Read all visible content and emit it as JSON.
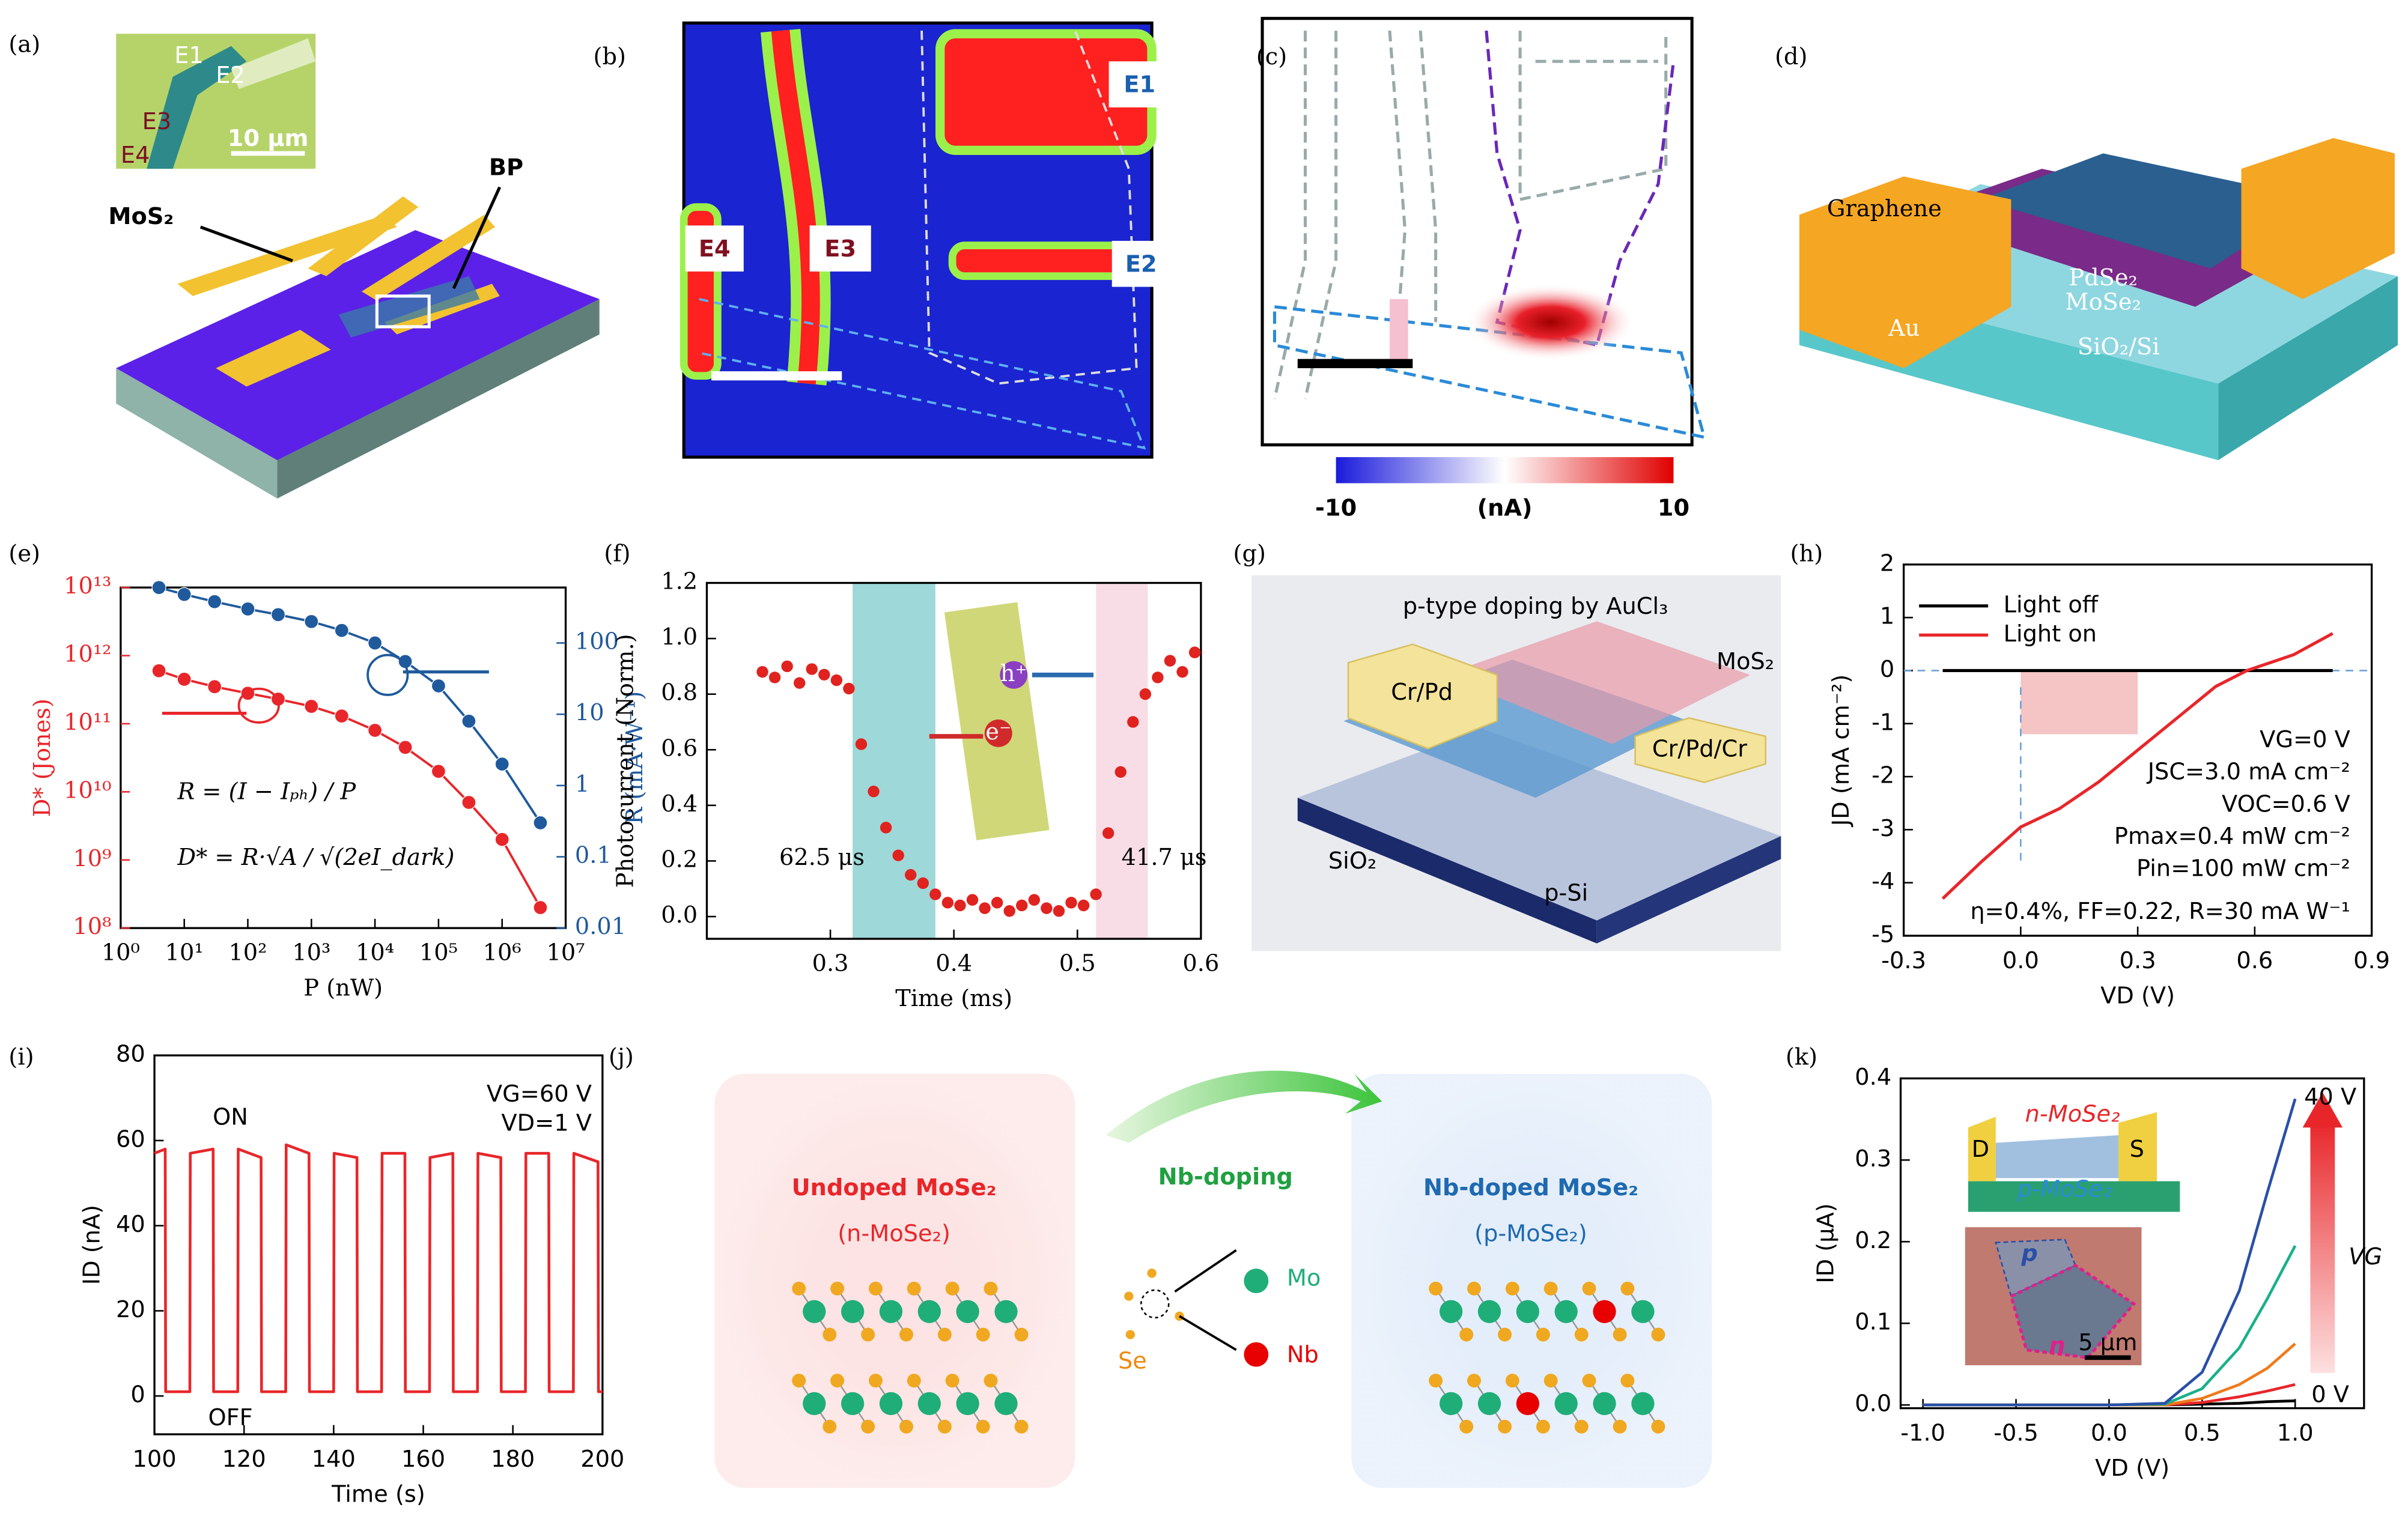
{
  "panel_labels": [
    "(a)",
    "(b)",
    "(c)",
    "(d)",
    "(e)",
    "(f)",
    "(g)",
    "(h)",
    "(i)",
    "(j)",
    "(k)"
  ],
  "a": {
    "electrodes": [
      "E1",
      "E2",
      "E3",
      "E4"
    ],
    "scale_bar": "10 μm",
    "materials": [
      "MoS₂",
      "BP"
    ]
  },
  "b": {
    "electrodes": [
      "E1",
      "E2",
      "E3",
      "E4"
    ]
  },
  "c": {
    "colorbar": {
      "min": -10,
      "max": 10,
      "unit": "(nA)"
    }
  },
  "d": {
    "layers": [
      "Graphene",
      "Au",
      "PdSe₂",
      "MoSe₂",
      "SiO₂/Si"
    ]
  },
  "e": {
    "type": "scatter",
    "xlabel": "P (nW)",
    "ylabel": "D* (Jones)",
    "y2label": "R (mA·W⁻¹)",
    "xlog": true,
    "ylog": true,
    "y2log": true,
    "xlim": [
      1,
      10000000.0
    ],
    "ylim": [
      100000000.0,
      10000000000000.0
    ],
    "y2lim": [
      0.01,
      600
    ],
    "xticks": [
      {
        "value": 1,
        "label": "10⁰"
      },
      {
        "value": 10,
        "label": "10¹"
      },
      {
        "value": 100,
        "label": "10²"
      },
      {
        "value": 1000,
        "label": "10³"
      },
      {
        "value": 10000,
        "label": "10⁴"
      },
      {
        "value": 100000,
        "label": "10⁵"
      },
      {
        "value": 1000000,
        "label": "10⁶"
      },
      {
        "value": 10000000,
        "label": "10⁷"
      }
    ],
    "yticks": [
      {
        "value": 100000000.0,
        "label": "10⁸"
      },
      {
        "value": 1000000000.0,
        "label": "10⁹"
      },
      {
        "value": 10000000000.0,
        "label": "10¹⁰"
      },
      {
        "value": 100000000000.0,
        "label": "10¹¹"
      },
      {
        "value": 1000000000000.0,
        "label": "10¹²"
      },
      {
        "value": 10000000000000.0,
        "label": "10¹³"
      }
    ],
    "y2ticks": [
      0.01,
      0.1,
      1,
      10,
      100
    ],
    "x": [
      4,
      10,
      30,
      100,
      300,
      1000,
      3000,
      10000,
      30000,
      100000,
      300000,
      1000000,
      4000000
    ],
    "series": [
      {
        "color": "#e8262a",
        "values": [
          600000000000.0,
          450000000000.0,
          350000000000.0,
          280000000000.0,
          230000000000.0,
          180000000000.0,
          130000000000.0,
          80000000000.0,
          45000000000.0,
          20000000000.0,
          7000000000.0,
          2000000000.0,
          200000000.0
        ]
      },
      {
        "color": "#1f5a9c",
        "axis": "y2",
        "values": [
          600,
          480,
          380,
          300,
          250,
          200,
          150,
          100,
          55,
          25,
          8,
          2,
          0.3
        ]
      }
    ],
    "formulas": [
      "R = (I − Iₚₕ) / P",
      "D* = R·√A / √(2eI_dark)"
    ]
  },
  "f": {
    "type": "scatter",
    "xlabel": "Time (ms)",
    "ylabel": "Photocurrent (Norm.)",
    "xlim": [
      0.2,
      0.6
    ],
    "ylim": [
      -0.08,
      1.2
    ],
    "xticks": [
      0.3,
      0.4,
      0.5,
      0.6
    ],
    "yticks": [
      {
        "value": 0,
        "label": "0.0"
      },
      0.2,
      0.4,
      0.6,
      0.8,
      {
        "value": 1,
        "label": "1.0"
      },
      1.2
    ],
    "spans": [
      [
        0.318,
        0.385
      ],
      [
        0.515,
        0.557
      ]
    ],
    "span_colors": [
      "#9ed8d8",
      "#f9dde6"
    ],
    "color": "#e0231f",
    "annotations": [
      "62.5 μs",
      "41.7 μs"
    ],
    "inset_labels": [
      "h⁺",
      "e⁻"
    ],
    "x": [
      0.245,
      0.255,
      0.265,
      0.275,
      0.285,
      0.295,
      0.305,
      0.315,
      0.325,
      0.335,
      0.345,
      0.355,
      0.365,
      0.375,
      0.385,
      0.395,
      0.405,
      0.415,
      0.425,
      0.435,
      0.445,
      0.455,
      0.465,
      0.475,
      0.485,
      0.495,
      0.505,
      0.515,
      0.525,
      0.535,
      0.545,
      0.555,
      0.565,
      0.575,
      0.585,
      0.595
    ],
    "values": [
      0.88,
      0.86,
      0.9,
      0.84,
      0.89,
      0.87,
      0.85,
      0.82,
      0.62,
      0.45,
      0.32,
      0.22,
      0.15,
      0.12,
      0.08,
      0.05,
      0.04,
      0.06,
      0.03,
      0.05,
      0.02,
      0.04,
      0.06,
      0.03,
      0.02,
      0.05,
      0.04,
      0.08,
      0.3,
      0.52,
      0.7,
      0.8,
      0.86,
      0.92,
      0.88,
      0.95
    ]
  },
  "g": {
    "labels": [
      "p-type doping by AuCl₃",
      "MoS₂",
      "Cr/Pd",
      "Cr/Pd/Cr",
      "SiO₂",
      "p-Si"
    ]
  },
  "h": {
    "type": "line",
    "xlabel": "VD (V)",
    "ylabel": "JD (mA cm⁻²)",
    "xlim": [
      -0.3,
      0.9
    ],
    "ylim": [
      -5,
      2
    ],
    "xticks": [
      -0.3,
      {
        "value": 0,
        "label": "0.0"
      },
      0.3,
      0.6,
      0.9
    ],
    "yticks": [
      -5,
      -4,
      -3,
      -2,
      -1,
      0,
      1,
      2
    ],
    "legend": "upper left",
    "series": [
      {
        "name": "Light off",
        "color": "#000000",
        "x": [
          -0.2,
          0.8
        ],
        "values": [
          0,
          0
        ]
      },
      {
        "name": "Light on",
        "color": "#e8262a",
        "x": [
          -0.2,
          -0.1,
          0,
          0.1,
          0.2,
          0.3,
          0.4,
          0.5,
          0.58,
          0.7,
          0.8
        ],
        "values": [
          -4.3,
          -3.6,
          -2.95,
          -2.6,
          -2.1,
          -1.5,
          -0.9,
          -0.3,
          0,
          0.3,
          0.7
        ]
      }
    ],
    "shaded": {
      "x": [
        0,
        0.3
      ],
      "y": [
        -1.2,
        0
      ]
    },
    "annotations": [
      "VG=0 V",
      "JSC=3.0 mA cm⁻²",
      "VOC=0.6 V",
      "Pmax=0.4 mW cm⁻²",
      "Pin=100 mW cm⁻²",
      "η=0.4%, FF=0.22, R=30 mA W⁻¹"
    ]
  },
  "i": {
    "type": "line",
    "xlabel": "Time (s)",
    "ylabel": "ID (nA)",
    "xlim": [
      100,
      200
    ],
    "ylim": [
      -9,
      80
    ],
    "xticks": [
      100,
      120,
      140,
      160,
      180,
      200
    ],
    "yticks": [
      0,
      20,
      40,
      60,
      80
    ],
    "color": "#e8262a",
    "annotations": [
      "VG=60 V",
      "VD=1 V"
    ],
    "states": [
      "ON",
      "OFF"
    ],
    "x": [
      100,
      102.4,
      102.5,
      107.9,
      108,
      113.1,
      113.2,
      118.6,
      118.7,
      123.8,
      123.9,
      129.3,
      129.4,
      134.5,
      134.6,
      140,
      140.1,
      145.2,
      145.3,
      150.7,
      150.8,
      155.9,
      156,
      161.4,
      161.5,
      166.6,
      166.7,
      172.1,
      172.2,
      177.3,
      177.4,
      182.8,
      182.9,
      188,
      188.1,
      193.5,
      193.6,
      199,
      199.1,
      200
    ],
    "values": [
      57,
      58,
      1,
      1,
      57,
      58,
      1,
      1,
      58,
      56,
      1,
      1,
      59,
      57,
      1,
      1,
      57,
      56,
      1,
      1,
      57,
      57,
      1,
      1,
      56,
      57,
      1,
      1,
      57,
      56,
      1,
      1,
      57,
      57,
      1,
      1,
      57,
      55,
      1,
      1
    ]
  },
  "j": {
    "left_title": "Undoped MoSe₂",
    "left_sub": "(n-MoSe₂)",
    "process": "Nb-doping",
    "atoms": [
      "Mo",
      "Se",
      "Nb"
    ],
    "right_title": "Nb-doped MoSe₂",
    "right_sub": "(p-MoSe₂)"
  },
  "k": {
    "type": "line",
    "xlabel": "VD (V)",
    "ylabel": "ID (μA)",
    "xlim": [
      -1.12,
      1.37
    ],
    "ylim": [
      -0.004,
      0.4
    ],
    "xticks": [
      {
        "value": -1,
        "label": "-1.0"
      },
      -0.5,
      {
        "value": 0,
        "label": "0.0"
      },
      0.5,
      {
        "value": 1,
        "label": "1.0"
      }
    ],
    "yticks": [
      {
        "value": 0,
        "label": "0.0"
      },
      0.1,
      0.2,
      0.3,
      0.4
    ],
    "x": [
      -1,
      -0.5,
      0,
      0.3,
      0.5,
      0.7,
      0.85,
      1.0
    ],
    "series": [
      {
        "color": "#000000",
        "values": [
          0,
          0,
          0,
          0,
          0.001,
          0.002,
          0.004,
          0.005
        ]
      },
      {
        "color": "#e8262a",
        "values": [
          0,
          0,
          0,
          0,
          0.003,
          0.01,
          0.017,
          0.025
        ]
      },
      {
        "color": "#f07a1a",
        "values": [
          0,
          0,
          0,
          0,
          0.008,
          0.025,
          0.045,
          0.075
        ]
      },
      {
        "color": "#19b08a",
        "values": [
          0,
          0,
          0,
          0.001,
          0.02,
          0.07,
          0.13,
          0.195
        ]
      },
      {
        "color": "#2a4fa8",
        "values": [
          0,
          0,
          0,
          0.002,
          0.04,
          0.14,
          0.26,
          0.375
        ]
      }
    ],
    "gate": {
      "top": "40 V",
      "bottom": "0 V",
      "name": "VG"
    },
    "inset": [
      "n-MoSe₂",
      "p-MoSe₂",
      "D",
      "S",
      "p",
      "n",
      "5 μm"
    ]
  }
}
